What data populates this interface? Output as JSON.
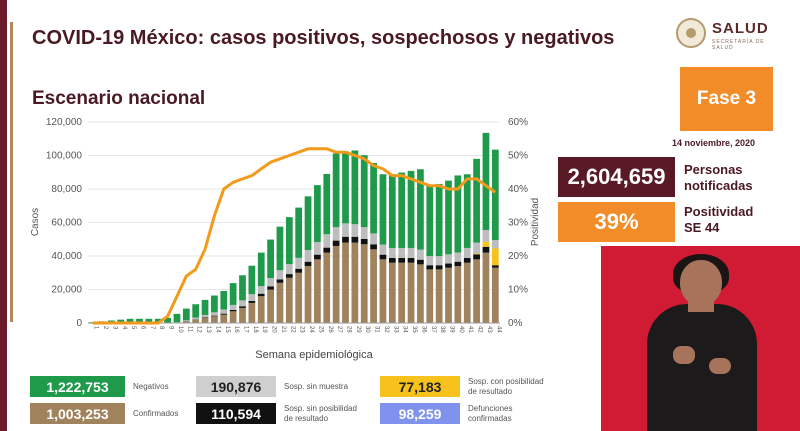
{
  "header": {
    "title": "COVID-19 México: casos positivos, sospechosos y negativos",
    "subtitle": "Escenario nacional"
  },
  "logo": {
    "name": "SALUD",
    "sub": "SECRETARÍA DE SALUD"
  },
  "phase": {
    "label": "Fase 3",
    "date": "14 noviembre, 2020"
  },
  "kpis": [
    {
      "value": "2,604,659",
      "label_line1": "Personas",
      "label_line2": "notificadas",
      "color": "#5a1a25"
    },
    {
      "value": "39%",
      "label_line1": "Positividad",
      "label_line2": "SE 44",
      "color": "#f28c28"
    }
  ],
  "legend": [
    {
      "value": "1,222,753",
      "label": "Negativos",
      "color": "#1e9a4a"
    },
    {
      "value": "190,876",
      "label": "Sosp. sin muestra",
      "color": "#bdbdbd"
    },
    {
      "value": "77,183",
      "label": "Sosp. con posibilidad\nde resultado",
      "color": "#f7c21c"
    },
    {
      "value": "1,003,253",
      "label": "Confirmados",
      "color": "#a0825c"
    },
    {
      "value": "110,594",
      "label": "Sosp. sin posibilidad\nde resultado",
      "color": "#111111"
    },
    {
      "value": "98,259",
      "label": "Defunciones\nconfirmadas",
      "color": "#7f93ee"
    }
  ],
  "chart_data": {
    "type": "bar",
    "stacked": true,
    "xlabel": "Semana epidemiológica",
    "ylabel": "Casos",
    "y2label": "Positividad",
    "ylim": [
      0,
      120000
    ],
    "y2lim": [
      0,
      60
    ],
    "yticks": [
      "0",
      "20,000",
      "40,000",
      "60,000",
      "80,000",
      "100,000",
      "120,000"
    ],
    "y2ticks": [
      "0%",
      "10%",
      "20%",
      "30%",
      "40%",
      "50%",
      "60%"
    ],
    "categories": [
      "1",
      "2",
      "3",
      "4",
      "5",
      "6",
      "7",
      "8",
      "9",
      "10",
      "11",
      "12",
      "13",
      "14",
      "15",
      "16",
      "17",
      "18",
      "19",
      "20",
      "21",
      "22",
      "23",
      "24",
      "25",
      "26",
      "27",
      "28",
      "29",
      "30",
      "31",
      "32",
      "33",
      "34",
      "35",
      "36",
      "37",
      "38",
      "39",
      "40",
      "41",
      "42",
      "43",
      "44"
    ],
    "series": [
      {
        "name": "Confirmados",
        "color": "#a0825c",
        "values": [
          0,
          0,
          0,
          0,
          0,
          0,
          0,
          0,
          20,
          200,
          1000,
          2000,
          3000,
          4000,
          5000,
          7000,
          9000,
          12000,
          16000,
          20000,
          24000,
          27000,
          30000,
          34000,
          38000,
          42000,
          46000,
          48000,
          48000,
          47000,
          44000,
          38000,
          36000,
          36000,
          36000,
          35000,
          32000,
          32000,
          33000,
          34000,
          36000,
          38000,
          42000,
          33000
        ]
      },
      {
        "name": "Sosp. sin posibilidad de resultado",
        "color": "#111111",
        "values": [
          0,
          0,
          0,
          0,
          0,
          0,
          0,
          0,
          0,
          50,
          100,
          200,
          300,
          400,
          600,
          800,
          1000,
          1200,
          1500,
          1800,
          2000,
          2200,
          2400,
          2600,
          2800,
          3000,
          3200,
          3500,
          3500,
          3200,
          3000,
          2800,
          2800,
          2800,
          2800,
          2800,
          2500,
          2500,
          2500,
          2600,
          2800,
          3000,
          3500,
          1500
        ]
      },
      {
        "name": "Sosp. con posibilidad de resultado",
        "color": "#f7c21c",
        "values": [
          0,
          0,
          0,
          0,
          0,
          0,
          0,
          0,
          0,
          0,
          0,
          0,
          0,
          0,
          0,
          0,
          0,
          0,
          0,
          0,
          0,
          0,
          0,
          0,
          0,
          0,
          0,
          0,
          0,
          0,
          0,
          0,
          0,
          0,
          0,
          0,
          0,
          0,
          0,
          0,
          0,
          500,
          3000,
          10000
        ]
      },
      {
        "name": "Sosp. sin muestra",
        "color": "#bdbdbd",
        "values": [
          0,
          0,
          0,
          0,
          0,
          0,
          0,
          0,
          50,
          200,
          500,
          1000,
          1500,
          2000,
          2500,
          3000,
          3500,
          4000,
          4500,
          5000,
          5500,
          6000,
          6500,
          7000,
          7500,
          8000,
          8000,
          8000,
          7500,
          7000,
          6500,
          6000,
          6000,
          6000,
          6000,
          6000,
          5500,
          5500,
          5500,
          5500,
          6000,
          6500,
          7000,
          5000
        ]
      },
      {
        "name": "Negativos",
        "color": "#1e9a4a",
        "values": [
          500,
          1000,
          1500,
          2000,
          2500,
          2500,
          2500,
          2500,
          3000,
          5000,
          7000,
          8000,
          9000,
          10000,
          11000,
          13000,
          15000,
          17000,
          20000,
          23000,
          26000,
          28000,
          30000,
          32000,
          34000,
          36000,
          44000,
          43000,
          44000,
          43000,
          42000,
          42000,
          44000,
          45000,
          46000,
          48000,
          42000,
          43000,
          44000,
          46000,
          44000,
          50000,
          58000,
          54000
        ]
      }
    ],
    "line": {
      "name": "Positividad",
      "color": "#f29a1c",
      "values": [
        0,
        0,
        0,
        0,
        0,
        0,
        0,
        0,
        2,
        8,
        14,
        16,
        22,
        32,
        40,
        42,
        43,
        44,
        46,
        48,
        49,
        50,
        51,
        52,
        52,
        52,
        51,
        51,
        50,
        49,
        47,
        46,
        44,
        44,
        43,
        42,
        41,
        41,
        40,
        40,
        43,
        43,
        41,
        39
      ]
    }
  }
}
